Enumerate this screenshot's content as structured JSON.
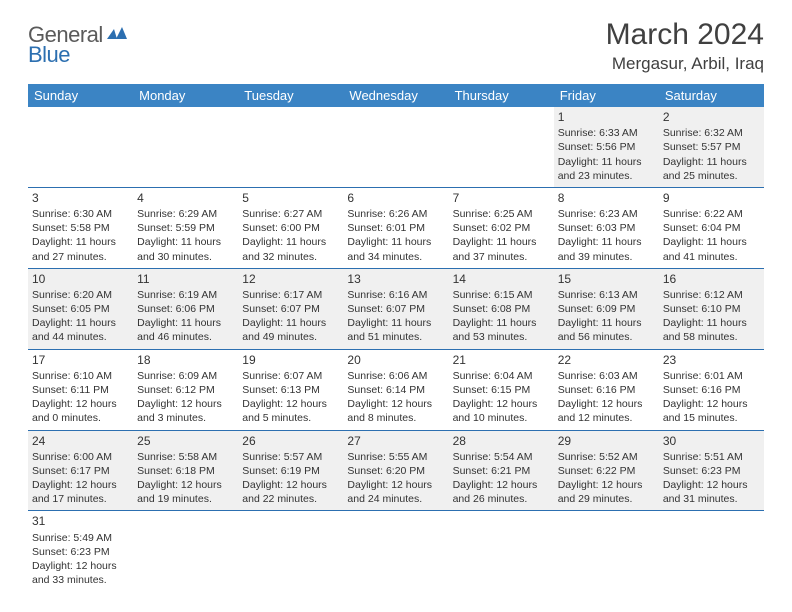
{
  "logo": {
    "general": "General",
    "blue": "Blue"
  },
  "title": "March 2024",
  "location": "Mergasur, Arbil, Iraq",
  "colors": {
    "header_bg": "#3b84c4",
    "header_text": "#ffffff",
    "row_alt_bg": "#f0f0f0",
    "border": "#2c6fb0",
    "title_color": "#404040",
    "logo_gray": "#5a5a5a",
    "logo_blue": "#2c6fb0"
  },
  "weekdays": [
    "Sunday",
    "Monday",
    "Tuesday",
    "Wednesday",
    "Thursday",
    "Friday",
    "Saturday"
  ],
  "weeks": [
    [
      null,
      null,
      null,
      null,
      null,
      {
        "n": "1",
        "sr": "Sunrise: 6:33 AM",
        "ss": "Sunset: 5:56 PM",
        "dl": "Daylight: 11 hours and 23 minutes."
      },
      {
        "n": "2",
        "sr": "Sunrise: 6:32 AM",
        "ss": "Sunset: 5:57 PM",
        "dl": "Daylight: 11 hours and 25 minutes."
      }
    ],
    [
      {
        "n": "3",
        "sr": "Sunrise: 6:30 AM",
        "ss": "Sunset: 5:58 PM",
        "dl": "Daylight: 11 hours and 27 minutes."
      },
      {
        "n": "4",
        "sr": "Sunrise: 6:29 AM",
        "ss": "Sunset: 5:59 PM",
        "dl": "Daylight: 11 hours and 30 minutes."
      },
      {
        "n": "5",
        "sr": "Sunrise: 6:27 AM",
        "ss": "Sunset: 6:00 PM",
        "dl": "Daylight: 11 hours and 32 minutes."
      },
      {
        "n": "6",
        "sr": "Sunrise: 6:26 AM",
        "ss": "Sunset: 6:01 PM",
        "dl": "Daylight: 11 hours and 34 minutes."
      },
      {
        "n": "7",
        "sr": "Sunrise: 6:25 AM",
        "ss": "Sunset: 6:02 PM",
        "dl": "Daylight: 11 hours and 37 minutes."
      },
      {
        "n": "8",
        "sr": "Sunrise: 6:23 AM",
        "ss": "Sunset: 6:03 PM",
        "dl": "Daylight: 11 hours and 39 minutes."
      },
      {
        "n": "9",
        "sr": "Sunrise: 6:22 AM",
        "ss": "Sunset: 6:04 PM",
        "dl": "Daylight: 11 hours and 41 minutes."
      }
    ],
    [
      {
        "n": "10",
        "sr": "Sunrise: 6:20 AM",
        "ss": "Sunset: 6:05 PM",
        "dl": "Daylight: 11 hours and 44 minutes."
      },
      {
        "n": "11",
        "sr": "Sunrise: 6:19 AM",
        "ss": "Sunset: 6:06 PM",
        "dl": "Daylight: 11 hours and 46 minutes."
      },
      {
        "n": "12",
        "sr": "Sunrise: 6:17 AM",
        "ss": "Sunset: 6:07 PM",
        "dl": "Daylight: 11 hours and 49 minutes."
      },
      {
        "n": "13",
        "sr": "Sunrise: 6:16 AM",
        "ss": "Sunset: 6:07 PM",
        "dl": "Daylight: 11 hours and 51 minutes."
      },
      {
        "n": "14",
        "sr": "Sunrise: 6:15 AM",
        "ss": "Sunset: 6:08 PM",
        "dl": "Daylight: 11 hours and 53 minutes."
      },
      {
        "n": "15",
        "sr": "Sunrise: 6:13 AM",
        "ss": "Sunset: 6:09 PM",
        "dl": "Daylight: 11 hours and 56 minutes."
      },
      {
        "n": "16",
        "sr": "Sunrise: 6:12 AM",
        "ss": "Sunset: 6:10 PM",
        "dl": "Daylight: 11 hours and 58 minutes."
      }
    ],
    [
      {
        "n": "17",
        "sr": "Sunrise: 6:10 AM",
        "ss": "Sunset: 6:11 PM",
        "dl": "Daylight: 12 hours and 0 minutes."
      },
      {
        "n": "18",
        "sr": "Sunrise: 6:09 AM",
        "ss": "Sunset: 6:12 PM",
        "dl": "Daylight: 12 hours and 3 minutes."
      },
      {
        "n": "19",
        "sr": "Sunrise: 6:07 AM",
        "ss": "Sunset: 6:13 PM",
        "dl": "Daylight: 12 hours and 5 minutes."
      },
      {
        "n": "20",
        "sr": "Sunrise: 6:06 AM",
        "ss": "Sunset: 6:14 PM",
        "dl": "Daylight: 12 hours and 8 minutes."
      },
      {
        "n": "21",
        "sr": "Sunrise: 6:04 AM",
        "ss": "Sunset: 6:15 PM",
        "dl": "Daylight: 12 hours and 10 minutes."
      },
      {
        "n": "22",
        "sr": "Sunrise: 6:03 AM",
        "ss": "Sunset: 6:16 PM",
        "dl": "Daylight: 12 hours and 12 minutes."
      },
      {
        "n": "23",
        "sr": "Sunrise: 6:01 AM",
        "ss": "Sunset: 6:16 PM",
        "dl": "Daylight: 12 hours and 15 minutes."
      }
    ],
    [
      {
        "n": "24",
        "sr": "Sunrise: 6:00 AM",
        "ss": "Sunset: 6:17 PM",
        "dl": "Daylight: 12 hours and 17 minutes."
      },
      {
        "n": "25",
        "sr": "Sunrise: 5:58 AM",
        "ss": "Sunset: 6:18 PM",
        "dl": "Daylight: 12 hours and 19 minutes."
      },
      {
        "n": "26",
        "sr": "Sunrise: 5:57 AM",
        "ss": "Sunset: 6:19 PM",
        "dl": "Daylight: 12 hours and 22 minutes."
      },
      {
        "n": "27",
        "sr": "Sunrise: 5:55 AM",
        "ss": "Sunset: 6:20 PM",
        "dl": "Daylight: 12 hours and 24 minutes."
      },
      {
        "n": "28",
        "sr": "Sunrise: 5:54 AM",
        "ss": "Sunset: 6:21 PM",
        "dl": "Daylight: 12 hours and 26 minutes."
      },
      {
        "n": "29",
        "sr": "Sunrise: 5:52 AM",
        "ss": "Sunset: 6:22 PM",
        "dl": "Daylight: 12 hours and 29 minutes."
      },
      {
        "n": "30",
        "sr": "Sunrise: 5:51 AM",
        "ss": "Sunset: 6:23 PM",
        "dl": "Daylight: 12 hours and 31 minutes."
      }
    ],
    [
      {
        "n": "31",
        "sr": "Sunrise: 5:49 AM",
        "ss": "Sunset: 6:23 PM",
        "dl": "Daylight: 12 hours and 33 minutes."
      },
      null,
      null,
      null,
      null,
      null,
      null
    ]
  ]
}
